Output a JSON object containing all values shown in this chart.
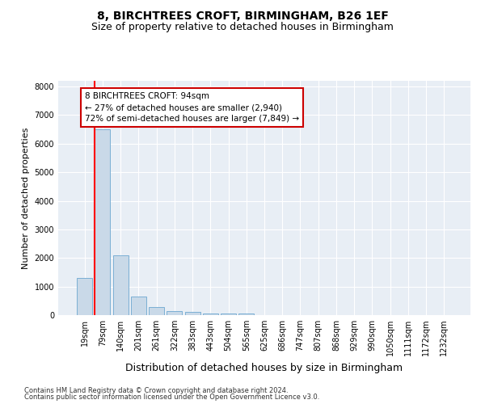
{
  "title": "8, BIRCHTREES CROFT, BIRMINGHAM, B26 1EF",
  "subtitle": "Size of property relative to detached houses in Birmingham",
  "xlabel": "Distribution of detached houses by size in Birmingham",
  "ylabel": "Number of detached properties",
  "footer_line1": "Contains HM Land Registry data © Crown copyright and database right 2024.",
  "footer_line2": "Contains public sector information licensed under the Open Government Licence v3.0.",
  "categories": [
    "19sqm",
    "79sqm",
    "140sqm",
    "201sqm",
    "261sqm",
    "322sqm",
    "383sqm",
    "443sqm",
    "504sqm",
    "565sqm",
    "625sqm",
    "686sqm",
    "747sqm",
    "807sqm",
    "868sqm",
    "929sqm",
    "990sqm",
    "1050sqm",
    "1111sqm",
    "1172sqm",
    "1232sqm"
  ],
  "values": [
    1300,
    6500,
    2080,
    660,
    290,
    145,
    100,
    65,
    55,
    50,
    0,
    0,
    0,
    0,
    0,
    0,
    0,
    0,
    0,
    0,
    0
  ],
  "bar_color": "#c9d9e8",
  "bar_edge_color": "#7bafd4",
  "ylim": [
    0,
    8200
  ],
  "yticks": [
    0,
    1000,
    2000,
    3000,
    4000,
    5000,
    6000,
    7000,
    8000
  ],
  "annotation_text": "8 BIRCHTREES CROFT: 94sqm\n← 27% of detached houses are smaller (2,940)\n72% of semi-detached houses are larger (7,849) →",
  "annotation_box_facecolor": "#ffffff",
  "annotation_box_edgecolor": "#cc0000",
  "red_line_x": 0.575,
  "background_color": "#e8eef5",
  "grid_color": "#ffffff",
  "title_fontsize": 10,
  "subtitle_fontsize": 9,
  "ylabel_fontsize": 8,
  "xlabel_fontsize": 9,
  "tick_fontsize": 7,
  "annotation_fontsize": 7.5,
  "footer_fontsize": 6.0
}
